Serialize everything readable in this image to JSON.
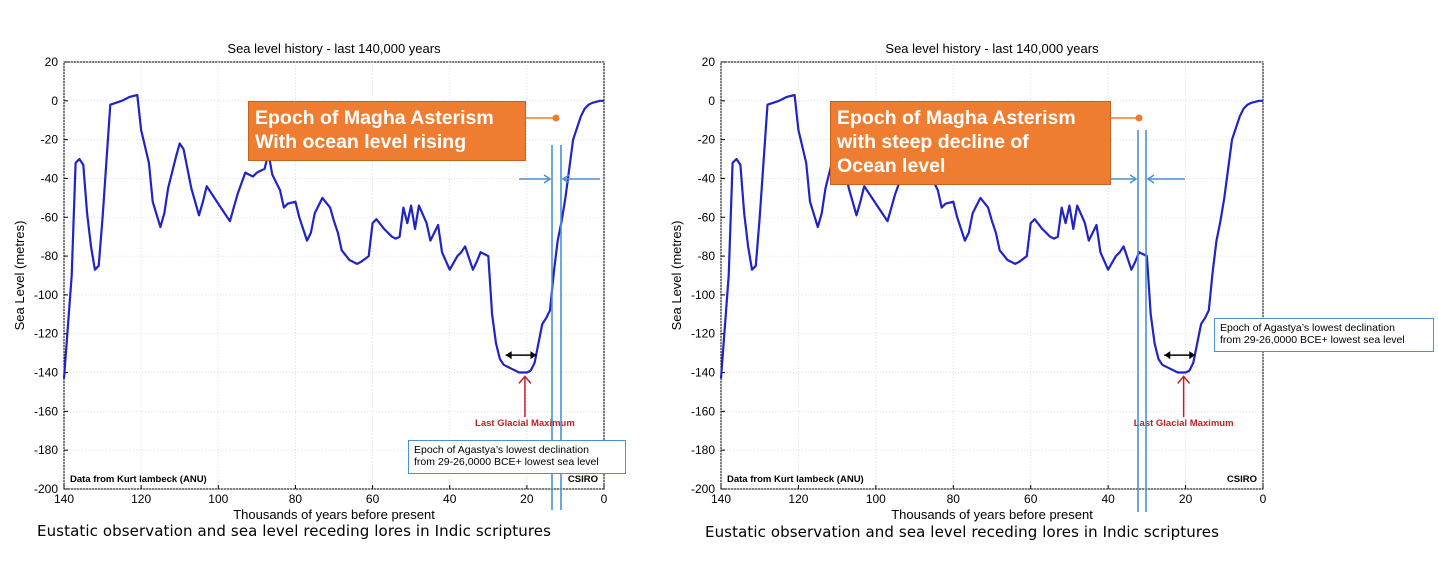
{
  "colors": {
    "curve": "#1f24c7",
    "annotation_box": "#ef7d31",
    "marker_line": "#4a90d9",
    "lgm_text": "#c0202a"
  },
  "icons": [
    "double-arrow-icon",
    "up-arrow-icon",
    "left-arrow-icon",
    "right-arrow-icon"
  ],
  "panels": [
    {
      "caption": "Eustatic observation and sea level receding lores in Indic scriptures",
      "orange_line1": "Epoch of Magha Asterism",
      "orange_line2": "With ocean level rising",
      "orange_line3": "",
      "agastya_line1": "Epoch of Agastya’s lowest declination",
      "agastya_line2": "from 29-26,0000 BCE+ lowest sea level"
    },
    {
      "caption": "Eustatic observation and sea level receding lores in Indic scriptures",
      "orange_line1": "Epoch of Magha Asterism",
      "orange_line2": "with steep decline of",
      "orange_line3": "Ocean level",
      "agastya_line1": "Epoch of Agastya’s lowest declination",
      "agastya_line2": "from 29-26,0000 BCE+ lowest sea level"
    }
  ],
  "chart_data": [
    {
      "type": "line",
      "title": "Sea level history - last 140,000 years",
      "xlabel": "Thousands of years before present",
      "ylabel": "Sea Level (metres)",
      "xlim": [
        140,
        0
      ],
      "ylim": [
        -200,
        20
      ],
      "xticks": [
        140,
        120,
        100,
        80,
        60,
        40,
        20,
        0
      ],
      "yticks": [
        20,
        0,
        -20,
        -40,
        -60,
        -80,
        -100,
        -120,
        -140,
        -160,
        -180,
        -200
      ],
      "grid": true,
      "source_label": "Data from Kurt lambeck (ANU)",
      "credit": "CSIRO",
      "annotation_lgm": "Last Glacial Maximum",
      "series": [
        {
          "x": [
            140,
            138,
            137,
            136,
            135,
            134,
            133,
            132,
            131,
            130,
            128,
            125,
            123,
            121,
            120,
            118,
            117,
            115,
            114,
            113,
            111,
            110,
            109,
            107,
            105,
            104,
            103,
            101,
            99,
            97,
            95,
            93,
            92,
            91,
            90,
            88,
            87,
            86,
            84,
            83,
            82,
            80,
            79,
            77,
            76,
            75,
            73,
            71,
            70,
            69,
            68,
            66,
            64,
            63,
            61,
            60,
            59,
            57,
            55,
            54,
            53,
            52,
            51,
            50,
            49,
            48,
            46,
            45,
            43,
            42,
            40,
            38,
            37,
            36,
            35,
            34,
            33,
            32,
            30,
            29,
            28,
            27,
            26,
            24,
            22,
            20,
            19,
            18,
            17,
            16,
            15,
            14,
            13,
            12,
            11,
            10,
            8,
            6,
            5,
            4,
            3,
            1,
            0
          ],
          "y": [
            -143,
            -90,
            -32,
            -30,
            -33,
            -58,
            -75,
            -87,
            -85,
            -60,
            -2,
            0,
            2,
            3,
            -15,
            -32,
            -52,
            -65,
            -58,
            -45,
            -29,
            -22,
            -25,
            -45,
            -59,
            -52,
            -44,
            -50,
            -56,
            -62,
            -48,
            -37,
            -38,
            -39,
            -37,
            -35,
            -27,
            -38,
            -46,
            -55,
            -53,
            -52,
            -60,
            -72,
            -68,
            -58,
            -50,
            -55,
            -62,
            -68,
            -77,
            -82,
            -84,
            -83,
            -80,
            -63,
            -61,
            -66,
            -70,
            -71,
            -70,
            -55,
            -63,
            -54,
            -66,
            -54,
            -63,
            -72,
            -64,
            -78,
            -87,
            -80,
            -78,
            -75,
            -81,
            -87,
            -83,
            -78,
            -80,
            -110,
            -125,
            -133,
            -136,
            -138,
            -140,
            -140,
            -139,
            -135,
            -125,
            -115,
            -112,
            -108,
            -88,
            -72,
            -62,
            -50,
            -20,
            -8,
            -4,
            -2,
            -1,
            0,
            0
          ]
        }
      ]
    },
    {
      "type": "line",
      "title": "Sea level history - last 140,000 years",
      "xlabel": "Thousands of years before present",
      "ylabel": "Sea Level (metres)",
      "xlim": [
        140,
        0
      ],
      "ylim": [
        -200,
        20
      ],
      "xticks": [
        140,
        120,
        100,
        80,
        60,
        40,
        20,
        0
      ],
      "yticks": [
        20,
        0,
        -20,
        -40,
        -60,
        -80,
        -100,
        -120,
        -140,
        -160,
        -180,
        -200
      ],
      "grid": true,
      "source_label": "Data from Kurt lambeck (ANU)",
      "credit": "CSIRO",
      "annotation_lgm": "Last Glacial Maximum",
      "series": [
        {
          "x": [
            140,
            138,
            137,
            136,
            135,
            134,
            133,
            132,
            131,
            130,
            128,
            125,
            123,
            121,
            120,
            118,
            117,
            115,
            114,
            113,
            111,
            110,
            109,
            107,
            105,
            104,
            103,
            101,
            99,
            97,
            95,
            93,
            92,
            91,
            90,
            88,
            87,
            86,
            84,
            83,
            82,
            80,
            79,
            77,
            76,
            75,
            73,
            71,
            70,
            69,
            68,
            66,
            64,
            63,
            61,
            60,
            59,
            57,
            55,
            54,
            53,
            52,
            51,
            50,
            49,
            48,
            46,
            45,
            43,
            42,
            40,
            38,
            37,
            36,
            35,
            34,
            33,
            32,
            30,
            29,
            28,
            27,
            26,
            24,
            22,
            20,
            19,
            18,
            17,
            16,
            15,
            14,
            13,
            12,
            11,
            10,
            8,
            6,
            5,
            4,
            3,
            1,
            0
          ],
          "y": [
            -143,
            -90,
            -32,
            -30,
            -33,
            -58,
            -75,
            -87,
            -85,
            -60,
            -2,
            0,
            2,
            3,
            -15,
            -32,
            -52,
            -65,
            -58,
            -45,
            -29,
            -22,
            -25,
            -45,
            -59,
            -52,
            -44,
            -50,
            -56,
            -62,
            -48,
            -37,
            -38,
            -39,
            -37,
            -35,
            -27,
            -38,
            -46,
            -55,
            -53,
            -52,
            -60,
            -72,
            -68,
            -58,
            -50,
            -55,
            -62,
            -68,
            -77,
            -82,
            -84,
            -83,
            -80,
            -63,
            -61,
            -66,
            -70,
            -71,
            -70,
            -55,
            -63,
            -54,
            -66,
            -54,
            -63,
            -72,
            -64,
            -78,
            -87,
            -80,
            -78,
            -75,
            -81,
            -87,
            -83,
            -78,
            -80,
            -110,
            -125,
            -133,
            -136,
            -138,
            -140,
            -140,
            -139,
            -135,
            -125,
            -115,
            -112,
            -108,
            -88,
            -72,
            -62,
            -50,
            -20,
            -8,
            -4,
            -2,
            -1,
            0,
            0
          ]
        }
      ]
    }
  ]
}
